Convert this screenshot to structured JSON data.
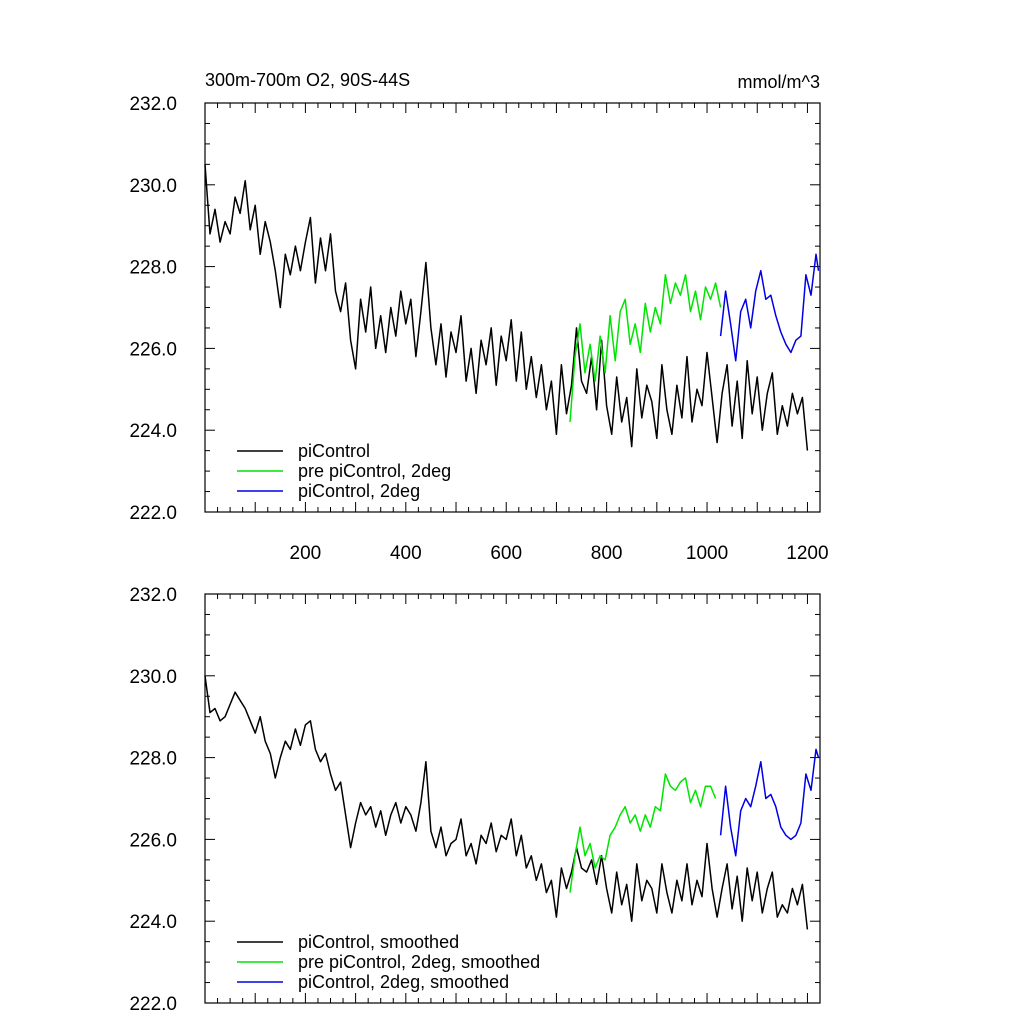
{
  "chart_data": [
    {
      "type": "line",
      "title": "300m-700m O2, 90S-44S",
      "units": "mmol/m^3",
      "xlabel": "",
      "ylabel": "",
      "xlim": [
        0,
        1225
      ],
      "ylim": [
        222.0,
        232.0
      ],
      "x_ticks": [
        200,
        400,
        600,
        800,
        1000,
        1200
      ],
      "x_tick_labels": [
        "200",
        "400",
        "600",
        "800",
        "1000",
        "1200"
      ],
      "y_ticks": [
        222.0,
        224.0,
        226.0,
        228.0,
        230.0,
        232.0
      ],
      "y_tick_labels": [
        "222.0",
        "224.0",
        "226.0",
        "228.0",
        "230.0",
        "232.0"
      ],
      "legend_position": "bottom-left",
      "grid": false,
      "series": [
        {
          "name": "piControl",
          "color": "#000000",
          "x": [
            0,
            10,
            20,
            30,
            40,
            50,
            60,
            70,
            80,
            90,
            100,
            110,
            120,
            130,
            140,
            150,
            160,
            170,
            180,
            190,
            200,
            210,
            220,
            230,
            240,
            250,
            260,
            270,
            280,
            290,
            300,
            310,
            320,
            330,
            340,
            350,
            360,
            370,
            380,
            390,
            400,
            410,
            420,
            430,
            440,
            450,
            460,
            470,
            480,
            490,
            500,
            510,
            520,
            530,
            540,
            550,
            560,
            570,
            580,
            590,
            600,
            610,
            620,
            630,
            640,
            650,
            660,
            670,
            680,
            690,
            700,
            710,
            720,
            730,
            740,
            750,
            760,
            770,
            780,
            790,
            800,
            810,
            820,
            830,
            840,
            850,
            860,
            870,
            880,
            890,
            900,
            910,
            920,
            930,
            940,
            950,
            960,
            970,
            980,
            990,
            1000,
            1010,
            1020,
            1030,
            1040,
            1050,
            1060,
            1070,
            1080,
            1090,
            1100,
            1110,
            1120,
            1130,
            1140,
            1150,
            1160,
            1170,
            1180,
            1190,
            1200
          ],
          "values": [
            230.5,
            228.8,
            229.4,
            228.6,
            229.1,
            228.8,
            229.7,
            229.3,
            230.1,
            228.9,
            229.5,
            228.3,
            229.1,
            228.6,
            227.9,
            227.0,
            228.3,
            227.8,
            228.5,
            227.9,
            228.6,
            229.2,
            227.6,
            228.7,
            227.9,
            228.8,
            227.4,
            226.9,
            227.6,
            226.2,
            225.5,
            227.2,
            226.4,
            227.5,
            226.0,
            226.8,
            225.9,
            227.0,
            226.3,
            227.4,
            226.6,
            227.2,
            225.8,
            226.9,
            228.1,
            226.5,
            225.6,
            226.6,
            225.3,
            226.4,
            225.9,
            226.8,
            225.2,
            226.0,
            224.9,
            226.2,
            225.6,
            226.5,
            225.1,
            226.3,
            225.7,
            226.7,
            225.2,
            226.4,
            225.0,
            225.8,
            224.8,
            225.6,
            224.5,
            225.2,
            223.9,
            225.6,
            224.4,
            225.1,
            226.5,
            225.2,
            224.9,
            225.8,
            224.5,
            226.2,
            224.6,
            223.9,
            225.3,
            224.2,
            224.8,
            223.6,
            225.5,
            224.3,
            225.1,
            224.7,
            223.8,
            225.6,
            224.5,
            223.9,
            225.1,
            224.3,
            225.8,
            224.2,
            225.0,
            224.6,
            225.9,
            224.8,
            223.7,
            224.9,
            225.6,
            224.1,
            225.2,
            223.8,
            225.7,
            224.4,
            225.3,
            224.0,
            224.9,
            225.4,
            223.9,
            224.6,
            224.1,
            224.9,
            224.4,
            224.8,
            223.5
          ],
          "name_in_legend": "piControl"
        },
        {
          "name": "pre piControl, 2deg",
          "color": "#00e400",
          "x": [
            727,
            737,
            747,
            757,
            767,
            777,
            787,
            797,
            807,
            817,
            827,
            837,
            847,
            857,
            867,
            877,
            887,
            897,
            907,
            917,
            927,
            937,
            947,
            957,
            967,
            977,
            987,
            997,
            1007,
            1017,
            1027
          ],
          "values": [
            224.2,
            225.8,
            226.6,
            225.4,
            226.1,
            225.2,
            226.3,
            225.4,
            226.8,
            225.7,
            226.9,
            227.2,
            226.1,
            226.6,
            225.9,
            227.1,
            226.4,
            227.0,
            226.6,
            227.8,
            227.1,
            227.6,
            227.3,
            227.8,
            226.9,
            227.4,
            226.7,
            227.5,
            227.2,
            227.6,
            227.0
          ]
        },
        {
          "name": "piControl, 2deg",
          "color": "#0000e6",
          "x": [
            1027,
            1037,
            1047,
            1057,
            1067,
            1077,
            1087,
            1097,
            1107,
            1117,
            1127,
            1137,
            1147,
            1157,
            1167,
            1177,
            1187,
            1197,
            1207,
            1217,
            1222
          ],
          "values": [
            226.3,
            227.4,
            226.6,
            225.7,
            226.9,
            227.2,
            226.5,
            227.4,
            227.9,
            227.2,
            227.3,
            226.8,
            226.4,
            226.1,
            225.9,
            226.2,
            226.3,
            227.8,
            227.3,
            228.3,
            227.9
          ]
        }
      ]
    },
    {
      "type": "line",
      "title": "",
      "xlabel": "",
      "ylabel": "",
      "xlim": [
        0,
        1225
      ],
      "ylim": [
        222.0,
        232.0
      ],
      "y_ticks": [
        222.0,
        224.0,
        226.0,
        228.0,
        230.0,
        232.0
      ],
      "y_tick_labels": [
        "222.0",
        "224.0",
        "226.0",
        "228.0",
        "230.0",
        "232.0"
      ],
      "legend_position": "bottom-left",
      "grid": false,
      "series": [
        {
          "name": "piControl, smoothed",
          "color": "#000000",
          "x": [
            0,
            10,
            20,
            30,
            40,
            50,
            60,
            70,
            80,
            90,
            100,
            110,
            120,
            130,
            140,
            150,
            160,
            170,
            180,
            190,
            200,
            210,
            220,
            230,
            240,
            250,
            260,
            270,
            280,
            290,
            300,
            310,
            320,
            330,
            340,
            350,
            360,
            370,
            380,
            390,
            400,
            410,
            420,
            430,
            440,
            450,
            460,
            470,
            480,
            490,
            500,
            510,
            520,
            530,
            540,
            550,
            560,
            570,
            580,
            590,
            600,
            610,
            620,
            630,
            640,
            650,
            660,
            670,
            680,
            690,
            700,
            710,
            720,
            730,
            740,
            750,
            760,
            770,
            780,
            790,
            800,
            810,
            820,
            830,
            840,
            850,
            860,
            870,
            880,
            890,
            900,
            910,
            920,
            930,
            940,
            950,
            960,
            970,
            980,
            990,
            1000,
            1010,
            1020,
            1030,
            1040,
            1050,
            1060,
            1070,
            1080,
            1090,
            1100,
            1110,
            1120,
            1130,
            1140,
            1150,
            1160,
            1170,
            1180,
            1190,
            1200
          ],
          "values": [
            230.0,
            229.1,
            229.2,
            228.9,
            229.0,
            229.3,
            229.6,
            229.4,
            229.2,
            228.9,
            228.6,
            229.0,
            228.4,
            228.1,
            227.5,
            228.0,
            228.4,
            228.2,
            228.7,
            228.3,
            228.8,
            228.9,
            228.2,
            227.9,
            228.1,
            227.6,
            227.2,
            227.4,
            226.6,
            225.8,
            226.4,
            226.9,
            226.6,
            226.8,
            226.3,
            226.7,
            226.1,
            226.6,
            226.9,
            226.4,
            226.8,
            226.6,
            226.2,
            226.9,
            227.9,
            226.2,
            225.8,
            226.3,
            225.6,
            225.9,
            226.0,
            226.5,
            225.6,
            225.9,
            225.4,
            226.1,
            225.9,
            226.4,
            225.7,
            226.1,
            226.0,
            226.5,
            225.6,
            226.1,
            225.3,
            225.6,
            225.0,
            225.4,
            224.7,
            225.0,
            224.1,
            225.3,
            224.8,
            225.2,
            225.8,
            225.3,
            225.2,
            225.5,
            224.9,
            225.6,
            224.8,
            224.2,
            225.2,
            224.4,
            224.9,
            224.0,
            225.4,
            224.5,
            225.0,
            224.8,
            224.2,
            225.4,
            224.7,
            224.2,
            225.0,
            224.5,
            225.4,
            224.4,
            225.0,
            224.6,
            225.9,
            224.8,
            224.1,
            224.8,
            225.4,
            224.3,
            225.1,
            224.0,
            225.3,
            224.5,
            225.2,
            224.2,
            224.8,
            225.2,
            224.1,
            224.4,
            224.2,
            224.8,
            224.4,
            224.9,
            223.8
          ]
        },
        {
          "name": "pre piControl, 2deg, smoothed",
          "color": "#00e400",
          "x": [
            727,
            737,
            747,
            757,
            767,
            777,
            787,
            797,
            807,
            817,
            827,
            837,
            847,
            857,
            867,
            877,
            887,
            897,
            907,
            917,
            927,
            937,
            947,
            957,
            967,
            977,
            987,
            997,
            1007,
            1017
          ],
          "values": [
            224.7,
            225.6,
            226.3,
            225.6,
            225.9,
            225.3,
            225.6,
            225.5,
            226.1,
            226.3,
            226.6,
            226.8,
            226.4,
            226.6,
            226.2,
            226.6,
            226.3,
            226.8,
            226.7,
            227.6,
            227.3,
            227.2,
            227.4,
            227.5,
            226.9,
            227.2,
            226.8,
            227.3,
            227.3,
            227.0
          ]
        },
        {
          "name": "piControl, 2deg, smoothed",
          "color": "#0000e6",
          "x": [
            1027,
            1037,
            1047,
            1057,
            1067,
            1077,
            1087,
            1097,
            1107,
            1117,
            1127,
            1137,
            1147,
            1157,
            1167,
            1177,
            1187,
            1197,
            1207,
            1217,
            1222
          ],
          "values": [
            226.1,
            227.3,
            226.3,
            225.6,
            226.7,
            227.0,
            226.8,
            227.3,
            227.9,
            227.0,
            227.1,
            226.8,
            226.3,
            226.1,
            226.0,
            226.1,
            226.4,
            227.6,
            227.2,
            228.2,
            228.0
          ]
        }
      ]
    }
  ]
}
